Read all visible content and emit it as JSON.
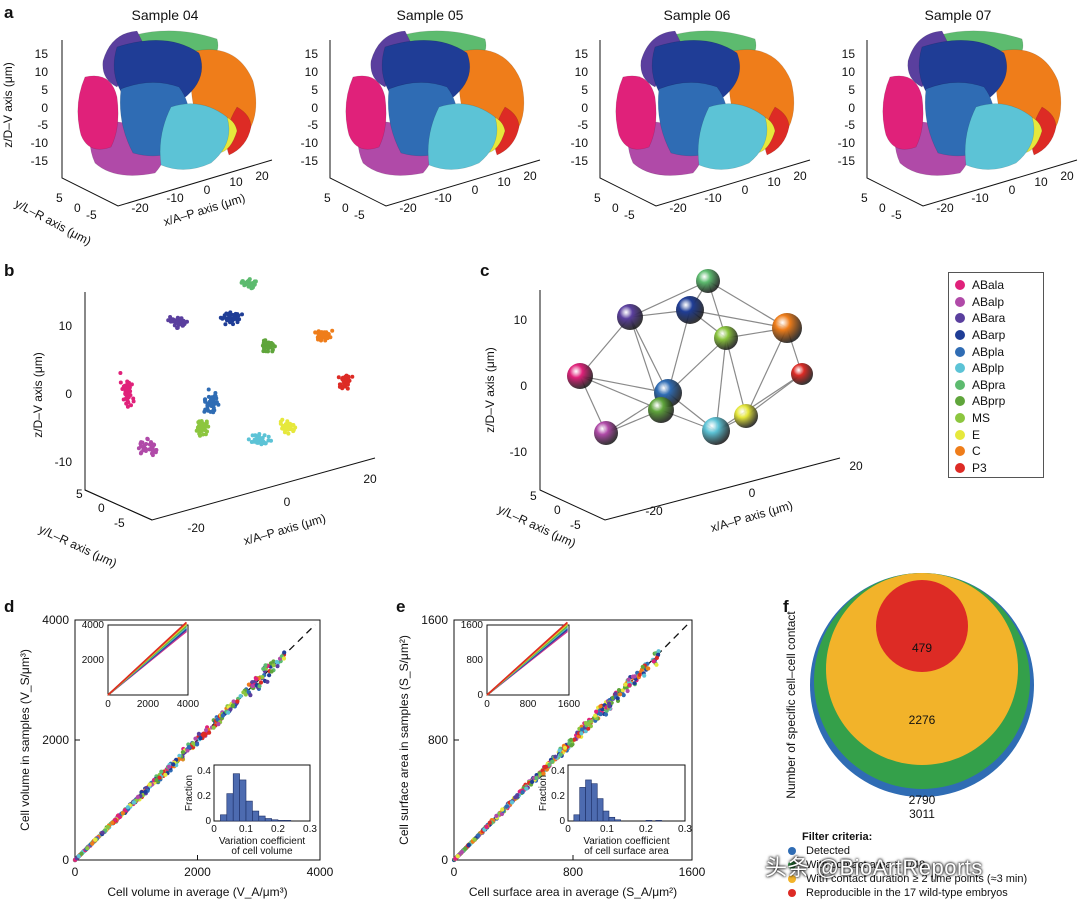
{
  "figure": {
    "panel_letters": [
      "a",
      "b",
      "c",
      "d",
      "e",
      "f"
    ],
    "sample_titles": [
      "Sample 04",
      "Sample 05",
      "Sample 06",
      "Sample 07"
    ],
    "watermark": "头条 @BioArtReports",
    "colors": {
      "ABala": "#e0217a",
      "ABalp": "#b04aa8",
      "ABara": "#5a3f9e",
      "ABarp": "#1f3d96",
      "ABpla": "#2f6cb4",
      "ABplp": "#5cc3d6",
      "ABpra": "#5dbb6f",
      "ABprp": "#5fa53b",
      "MS": "#8cc63f",
      "E": "#e6e83c",
      "C": "#ef7d1a",
      "P3": "#dd2b25"
    }
  },
  "panel_a": {
    "z_axis_label": "z/D–V axis (μm)",
    "y_axis_label": "y/L–R axis (μm)",
    "x_axis_label": "x/A–P axis (μm)",
    "z_ticks": [
      "15",
      "10",
      "5",
      "0",
      "-5",
      "-10",
      "-15"
    ],
    "y_ticks": [
      "5",
      "0",
      "-5"
    ],
    "x_ticks": [
      "-20",
      "-10",
      "0",
      "10",
      "20"
    ]
  },
  "panel_b": {
    "z_axis_label": "z/D–V axis (μm)",
    "y_axis_label": "y/L–R axis (μm)",
    "x_axis_label": "x/A–P axis (μm)",
    "z_ticks": [
      "10",
      "0",
      "-10"
    ],
    "y_ticks": [
      "5",
      "0",
      "-5"
    ],
    "x_ticks": [
      "-20",
      "0",
      "20"
    ]
  },
  "panel_c": {
    "z_axis_label": "z/D–V axis (μm)",
    "y_axis_label": "y/L–R axis (μm)",
    "x_axis_label": "x/A–P axis (μm)",
    "z_ticks": [
      "10",
      "0",
      "-10"
    ],
    "y_ticks": [
      "5",
      "0",
      "-5"
    ],
    "x_ticks": [
      "-20",
      "0",
      "20"
    ]
  },
  "legend": {
    "items": [
      {
        "label": "ABala",
        "color": "#e0217a"
      },
      {
        "label": "ABalp",
        "color": "#b04aa8"
      },
      {
        "label": "ABara",
        "color": "#5a3f9e"
      },
      {
        "label": "ABarp",
        "color": "#1f3d96"
      },
      {
        "label": "ABpla",
        "color": "#2f6cb4"
      },
      {
        "label": "ABplp",
        "color": "#5cc3d6"
      },
      {
        "label": "ABpra",
        "color": "#5dbb6f"
      },
      {
        "label": "ABprp",
        "color": "#5fa53b"
      },
      {
        "label": "MS",
        "color": "#8cc63f"
      },
      {
        "label": "E",
        "color": "#e6e83c"
      },
      {
        "label": "C",
        "color": "#ef7d1a"
      },
      {
        "label": "P3",
        "color": "#dd2b25"
      }
    ]
  },
  "chart_data": [
    {
      "id": "d",
      "type": "scatter",
      "xlabel": "Cell volume in average (V_A/μm³)",
      "ylabel": "Cell volume in samples (V_S/μm³)",
      "xlim": [
        0,
        4000
      ],
      "ylim": [
        0,
        4000
      ],
      "xticks": [
        "0",
        "2000",
        "4000"
      ],
      "yticks": [
        "0",
        "2000",
        "4000"
      ],
      "reference_line": "y = x (dashed)",
      "inset_main": {
        "xlim": [
          0,
          4000
        ],
        "ylim": [
          0,
          4000
        ],
        "xticks": [
          "0",
          "2000",
          "4000"
        ],
        "yticks": [
          "2000",
          "4000"
        ]
      },
      "inset_hist": {
        "type": "bar",
        "ylabel": "Fraction",
        "xlabel_line1": "Variation coefficient",
        "xlabel_line2": "of cell volume",
        "xticks": [
          "0",
          "0.1",
          "0.2",
          "0.3"
        ],
        "yticks": [
          "0",
          "0.2",
          "0.4"
        ],
        "xlim": [
          0,
          0.3
        ],
        "ylim": [
          0,
          0.45
        ],
        "bin_width": 0.02,
        "bin_starts": [
          0.02,
          0.04,
          0.06,
          0.08,
          0.1,
          0.12,
          0.14,
          0.16,
          0.18,
          0.2,
          0.22
        ],
        "values": [
          0.05,
          0.22,
          0.38,
          0.33,
          0.16,
          0.08,
          0.04,
          0.02,
          0.01,
          0.005,
          0.005
        ]
      }
    },
    {
      "id": "e",
      "type": "scatter",
      "xlabel": "Cell surface area in average (S_A/μm²)",
      "ylabel": "Cell surface area in samples (S_S/μm²)",
      "xlim": [
        0,
        1600
      ],
      "ylim": [
        0,
        1600
      ],
      "xticks": [
        "0",
        "800",
        "1600"
      ],
      "yticks": [
        "0",
        "800",
        "1600"
      ],
      "reference_line": "y = x (dashed)",
      "inset_main": {
        "xlim": [
          0,
          1600
        ],
        "ylim": [
          0,
          1600
        ],
        "xticks": [
          "0",
          "800",
          "1600"
        ],
        "yticks": [
          "0",
          "800",
          "1600"
        ]
      },
      "inset_hist": {
        "type": "bar",
        "ylabel": "Fraction",
        "xlabel_line1": "Variation coefficient",
        "xlabel_line2": "of cell surface area",
        "xticks": [
          "0",
          "0.1",
          "0.2",
          "0.3"
        ],
        "yticks": [
          "0",
          "0.2",
          "0.4"
        ],
        "xlim": [
          0,
          0.3
        ],
        "ylim": [
          0,
          0.45
        ],
        "bin_width": 0.015,
        "bin_starts": [
          0.015,
          0.03,
          0.045,
          0.06,
          0.075,
          0.09,
          0.105,
          0.12,
          0.2,
          0.225
        ],
        "values": [
          0.05,
          0.27,
          0.33,
          0.3,
          0.18,
          0.08,
          0.03,
          0.01,
          0.005,
          0.005
        ]
      }
    },
    {
      "id": "f",
      "type": "nested-circles",
      "ylabel": "Number of specific cell–cell contact",
      "series": [
        {
          "name": "Detected",
          "value": 3011,
          "color": "#2f6cb4"
        },
        {
          "name": "With contact area ≥ 1/48",
          "value": 2790,
          "color": "#34a04a"
        },
        {
          "name": "With contact duration ≥ 2 time points (≈3 min)",
          "value": 2276,
          "color": "#f2b32a"
        },
        {
          "name": "Reproducible in the 17 wild-type embryos",
          "value": 479,
          "color": "#dd2b25"
        }
      ],
      "filter_title": "Filter criteria:"
    }
  ]
}
